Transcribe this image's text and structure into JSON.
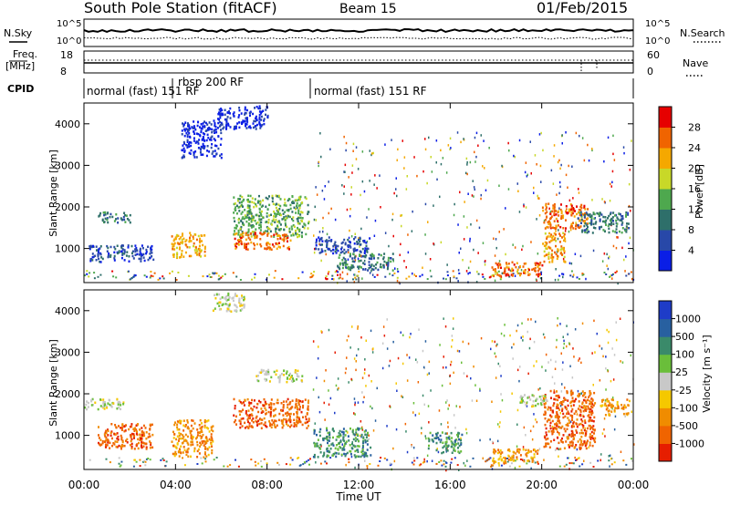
{
  "header": {
    "station": "South Pole Station (fitACF)",
    "beam": "Beam 15",
    "date": "01/Feb/2015"
  },
  "param_panels": {
    "nsky_label": "N.Sky",
    "nsearch_label": "N.Search",
    "freq_label_line1": "Freq.",
    "freq_label_line2": "[MHz]",
    "nave_label": "Nave",
    "cpid_label": "CPID",
    "nsky_ticks": [
      "10^5",
      "10^0"
    ],
    "nsearch_ticks": [
      "10^5",
      "10^0"
    ],
    "freq_ticks": [
      "18",
      "8"
    ],
    "nave_ticks": [
      "60",
      "0"
    ],
    "cpid_segments": [
      {
        "label": "normal (fast) 151 RF",
        "start_hour": 0.0,
        "end_hour": 3.9
      },
      {
        "label": "rbsp 200 RF",
        "start_hour": 3.9,
        "end_hour": 10.0
      },
      {
        "label": "normal (fast) 151 RF",
        "start_hour": 10.0,
        "end_hour": 24.0
      }
    ]
  },
  "chart_data": [
    {
      "type": "heatmap",
      "panel": "power",
      "ylabel": "Slant Range [km]",
      "yticks": [
        "1000",
        "2000",
        "3000",
        "4000"
      ],
      "xlim": [
        0,
        24
      ],
      "ylim": [
        180,
        4500
      ],
      "colorbar": {
        "label": "Power [dB]",
        "ticks": [
          "4",
          "8",
          "12",
          "16",
          "20",
          "24",
          "28"
        ],
        "colors": [
          "#0a1ee6",
          "#2848a8",
          "#2e6f6a",
          "#4ea84e",
          "#c8d828",
          "#f5a800",
          "#f06400",
          "#e60000"
        ]
      },
      "echo_regions": [
        {
          "x0": 0.6,
          "x1": 2.0,
          "y0": 1650,
          "y1": 1900,
          "color_index": 2
        },
        {
          "x0": 0.2,
          "x1": 3.0,
          "y0": 700,
          "y1": 1100,
          "color_index": 1
        },
        {
          "x0": 3.8,
          "x1": 5.3,
          "y0": 800,
          "y1": 1400,
          "color_index": 5
        },
        {
          "x0": 4.2,
          "x1": 6.0,
          "y0": 3200,
          "y1": 4100,
          "color_index": 0
        },
        {
          "x0": 5.8,
          "x1": 8.0,
          "y0": 3900,
          "y1": 4450,
          "color_index": 0
        },
        {
          "x0": 6.5,
          "x1": 9.8,
          "y0": 1300,
          "y1": 2300,
          "color_index": 3
        },
        {
          "x0": 6.5,
          "x1": 9.0,
          "y0": 1000,
          "y1": 1400,
          "color_index": 6
        },
        {
          "x0": 10.0,
          "x1": 12.5,
          "y0": 900,
          "y1": 1300,
          "color_index": 1
        },
        {
          "x0": 11.0,
          "x1": 13.5,
          "y0": 500,
          "y1": 900,
          "color_index": 2
        },
        {
          "x0": 17.8,
          "x1": 20.0,
          "y0": 350,
          "y1": 700,
          "color_index": 6
        },
        {
          "x0": 20.0,
          "x1": 22.0,
          "y0": 1500,
          "y1": 2100,
          "color_index": 6
        },
        {
          "x0": 20.0,
          "x1": 21.0,
          "y0": 700,
          "y1": 1400,
          "color_index": 5
        },
        {
          "x0": 21.5,
          "x1": 23.8,
          "y0": 1400,
          "y1": 1900,
          "color_index": 2
        }
      ]
    },
    {
      "type": "heatmap",
      "panel": "velocity",
      "ylabel": "Slant Range [km]",
      "xlabel": "Time UT",
      "yticks": [
        "1000",
        "2000",
        "3000",
        "4000"
      ],
      "xticks": [
        "00:00",
        "04:00",
        "08:00",
        "12:00",
        "16:00",
        "20:00",
        "00:00"
      ],
      "xlim": [
        0,
        24
      ],
      "ylim": [
        180,
        4500
      ],
      "colorbar": {
        "label": "Velocity [m s⁻¹]",
        "ticks": [
          "1000",
          "500",
          "100",
          "25",
          "-25",
          "-100",
          "-500",
          "-1000"
        ],
        "colors": [
          "#1e3cc8",
          "#2860a0",
          "#3a8a6a",
          "#6abe3a",
          "#c8c8c8",
          "#f5c800",
          "#f08c00",
          "#f06400",
          "#e61e00"
        ]
      },
      "echo_regions": [
        {
          "x0": 0.0,
          "x1": 1.8,
          "y0": 1650,
          "y1": 1900,
          "color_index": 4
        },
        {
          "x0": 0.5,
          "x1": 3.0,
          "y0": 700,
          "y1": 1300,
          "color_index": 7
        },
        {
          "x0": 3.8,
          "x1": 5.6,
          "y0": 500,
          "y1": 1400,
          "color_index": 6
        },
        {
          "x0": 5.6,
          "x1": 7.0,
          "y0": 4000,
          "y1": 4450,
          "color_index": 4
        },
        {
          "x0": 6.5,
          "x1": 9.8,
          "y0": 1200,
          "y1": 1900,
          "color_index": 7
        },
        {
          "x0": 7.5,
          "x1": 9.5,
          "y0": 2300,
          "y1": 2600,
          "color_index": 4
        },
        {
          "x0": 10.0,
          "x1": 12.5,
          "y0": 500,
          "y1": 1200,
          "color_index": 2
        },
        {
          "x0": 15.0,
          "x1": 16.5,
          "y0": 600,
          "y1": 1100,
          "color_index": 2
        },
        {
          "x0": 17.8,
          "x1": 19.8,
          "y0": 350,
          "y1": 700,
          "color_index": 6
        },
        {
          "x0": 20.0,
          "x1": 22.3,
          "y0": 700,
          "y1": 2100,
          "color_index": 7
        },
        {
          "x0": 19.0,
          "x1": 20.2,
          "y0": 1700,
          "y1": 2000,
          "color_index": 4
        },
        {
          "x0": 22.5,
          "x1": 23.8,
          "y0": 1500,
          "y1": 1900,
          "color_index": 6
        }
      ]
    }
  ]
}
